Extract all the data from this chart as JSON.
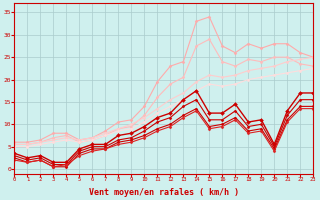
{
  "background_color": "#cff0ee",
  "grid_color": "#aacccc",
  "xlabel": "Vent moyen/en rafales ( km/h )",
  "ylabel_ticks": [
    0,
    5,
    10,
    15,
    20,
    25,
    30,
    35
  ],
  "xlabel_ticks": [
    0,
    1,
    2,
    3,
    4,
    5,
    6,
    7,
    8,
    9,
    10,
    11,
    12,
    13,
    14,
    15,
    16,
    17,
    18,
    19,
    20,
    21,
    22,
    23
  ],
  "xlim": [
    0,
    23
  ],
  "ylim": [
    -1,
    37
  ],
  "series": [
    {
      "color": "#ffaaaa",
      "x": [
        0,
        1,
        2,
        3,
        4,
        5,
        6,
        7,
        8,
        9,
        10,
        11,
        12,
        13,
        14,
        15,
        16,
        17,
        18,
        19,
        20,
        21,
        22,
        23
      ],
      "y": [
        6.0,
        6.0,
        6.5,
        8.0,
        8.0,
        6.5,
        7.0,
        8.5,
        10.5,
        11.0,
        14.0,
        19.5,
        23.0,
        24.0,
        33.0,
        34.0,
        27.5,
        26.0,
        28.0,
        27.0,
        28.0,
        28.0,
        26.0,
        25.0
      ],
      "marker": "D",
      "markersize": 1.5,
      "linewidth": 0.8
    },
    {
      "color": "#ffbbbb",
      "x": [
        0,
        1,
        2,
        3,
        4,
        5,
        6,
        7,
        8,
        9,
        10,
        11,
        12,
        13,
        14,
        15,
        16,
        17,
        18,
        19,
        20,
        21,
        22,
        23
      ],
      "y": [
        5.5,
        5.5,
        6.0,
        7.0,
        7.5,
        6.0,
        6.5,
        7.5,
        9.0,
        9.5,
        12.0,
        16.0,
        19.0,
        20.5,
        27.5,
        29.0,
        24.0,
        23.0,
        24.5,
        24.0,
        25.0,
        25.0,
        23.5,
        23.0
      ],
      "marker": "D",
      "markersize": 1.5,
      "linewidth": 0.8
    },
    {
      "color": "#ffcccc",
      "x": [
        0,
        1,
        2,
        3,
        4,
        5,
        6,
        7,
        8,
        9,
        10,
        11,
        12,
        13,
        14,
        15,
        16,
        17,
        18,
        19,
        20,
        21,
        22,
        23
      ],
      "y": [
        5.5,
        5.5,
        6.0,
        6.5,
        7.0,
        6.5,
        7.0,
        8.0,
        9.0,
        10.0,
        11.5,
        13.5,
        15.5,
        17.0,
        19.5,
        21.0,
        20.5,
        21.0,
        22.0,
        22.5,
        23.0,
        24.0,
        24.5,
        25.0
      ],
      "marker": "D",
      "markersize": 1.5,
      "linewidth": 0.8
    },
    {
      "color": "#ffdddd",
      "x": [
        0,
        1,
        2,
        3,
        4,
        5,
        6,
        7,
        8,
        9,
        10,
        11,
        12,
        13,
        14,
        15,
        16,
        17,
        18,
        19,
        20,
        21,
        22,
        23
      ],
      "y": [
        5.0,
        5.0,
        5.5,
        6.0,
        6.5,
        6.0,
        6.5,
        7.5,
        8.5,
        9.0,
        10.5,
        12.5,
        14.0,
        15.5,
        17.5,
        19.0,
        18.5,
        19.0,
        20.0,
        20.5,
        21.0,
        21.5,
        22.0,
        22.5
      ],
      "marker": "D",
      "markersize": 1.5,
      "linewidth": 0.8
    },
    {
      "color": "#cc0000",
      "x": [
        0,
        1,
        2,
        3,
        4,
        5,
        6,
        7,
        8,
        9,
        10,
        11,
        12,
        13,
        14,
        15,
        16,
        17,
        18,
        19,
        20,
        21,
        22,
        23
      ],
      "y": [
        3.5,
        2.5,
        3.0,
        1.5,
        1.5,
        4.5,
        5.5,
        5.5,
        7.5,
        8.0,
        9.5,
        11.5,
        12.5,
        15.5,
        17.5,
        12.5,
        12.5,
        14.5,
        10.5,
        11.0,
        5.5,
        13.0,
        17.0,
        17.0
      ],
      "marker": "D",
      "markersize": 2.0,
      "linewidth": 1.0
    },
    {
      "color": "#cc0000",
      "x": [
        0,
        1,
        2,
        3,
        4,
        5,
        6,
        7,
        8,
        9,
        10,
        11,
        12,
        13,
        14,
        15,
        16,
        17,
        18,
        19,
        20,
        21,
        22,
        23
      ],
      "y": [
        3.0,
        2.0,
        2.5,
        1.0,
        1.0,
        4.0,
        5.0,
        5.0,
        6.5,
        7.0,
        8.5,
        10.5,
        11.5,
        14.0,
        15.5,
        11.0,
        11.0,
        13.0,
        9.5,
        10.0,
        5.0,
        12.0,
        15.5,
        15.5
      ],
      "marker": "D",
      "markersize": 1.5,
      "linewidth": 0.8
    },
    {
      "color": "#cc0000",
      "x": [
        0,
        1,
        2,
        3,
        4,
        5,
        6,
        7,
        8,
        9,
        10,
        11,
        12,
        13,
        14,
        15,
        16,
        17,
        18,
        19,
        20,
        21,
        22,
        23
      ],
      "y": [
        2.5,
        1.5,
        2.0,
        0.5,
        0.5,
        3.5,
        4.5,
        4.5,
        6.0,
        6.5,
        7.5,
        9.0,
        10.0,
        12.0,
        13.5,
        9.5,
        10.0,
        11.5,
        8.5,
        9.0,
        4.5,
        11.0,
        14.0,
        14.0
      ],
      "marker": "D",
      "markersize": 1.5,
      "linewidth": 0.8
    },
    {
      "color": "#dd2222",
      "x": [
        0,
        1,
        2,
        3,
        4,
        5,
        6,
        7,
        8,
        9,
        10,
        11,
        12,
        13,
        14,
        15,
        16,
        17,
        18,
        19,
        20,
        21,
        22,
        23
      ],
      "y": [
        2.0,
        1.5,
        2.0,
        0.5,
        1.0,
        3.0,
        4.0,
        4.5,
        5.5,
        6.0,
        7.0,
        8.5,
        9.5,
        11.5,
        13.0,
        9.0,
        9.5,
        11.0,
        8.0,
        8.5,
        4.0,
        10.5,
        13.5,
        13.5
      ],
      "marker": "D",
      "markersize": 1.5,
      "linewidth": 0.8
    }
  ]
}
